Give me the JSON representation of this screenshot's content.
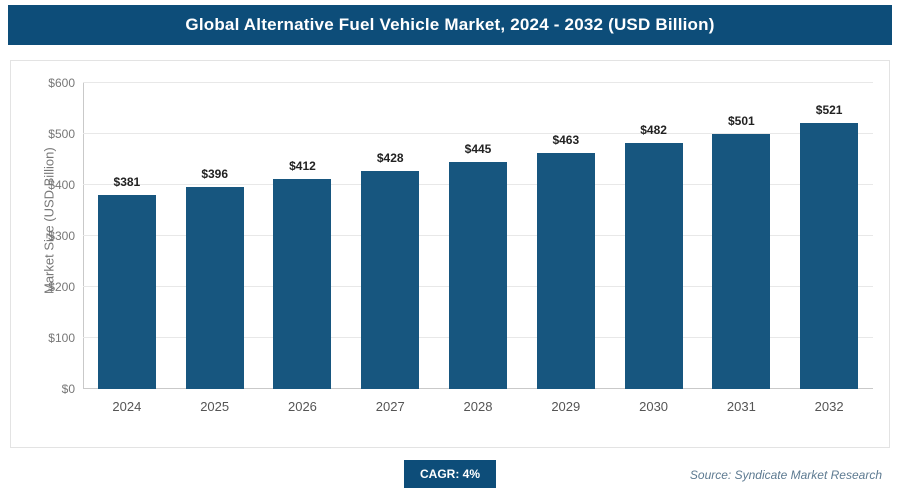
{
  "header": {
    "title": "Global Alternative Fuel Vehicle Market, 2024 - 2032 (USD Billion)"
  },
  "chart_data": {
    "type": "bar",
    "title": "Global Alternative Fuel Vehicle Market, 2024 - 2032 (USD Billion)",
    "categories": [
      "2024",
      "2025",
      "2026",
      "2027",
      "2028",
      "2029",
      "2030",
      "2031",
      "2032"
    ],
    "values": [
      381,
      396,
      412,
      428,
      445,
      463,
      482,
      501,
      521
    ],
    "value_labels": [
      "$381",
      "$396",
      "$412",
      "$428",
      "$445",
      "$463",
      "$482",
      "$501",
      "$521"
    ],
    "xlabel": "",
    "ylabel": "Market Size (USD Billion)",
    "ylim": [
      0,
      600
    ],
    "ytick_step": 100,
    "ytick_labels": [
      "$0",
      "$100",
      "$200",
      "$300",
      "$400",
      "$500",
      "$600"
    ],
    "grid": true,
    "legend": "none",
    "bar_color": "#17567f"
  },
  "footer": {
    "cagr_label": "CAGR: 4%",
    "source": "Source: Syndicate Market Research"
  },
  "colors": {
    "header_bg": "#0d4d79",
    "bar": "#17567f",
    "badge_bg": "#0d4d79",
    "gridline": "#e8e8e8"
  }
}
